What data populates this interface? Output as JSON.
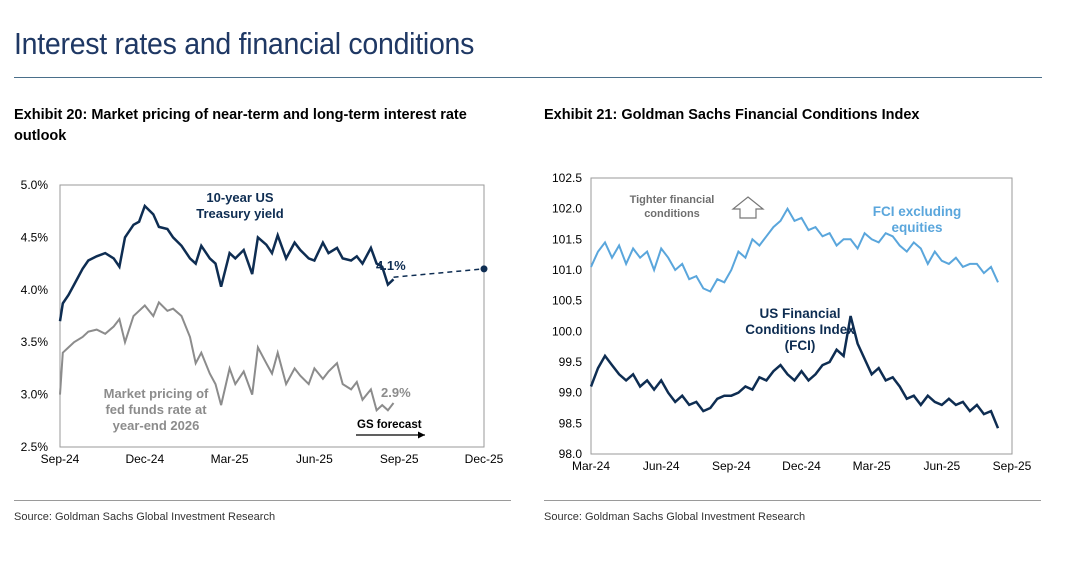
{
  "page": {
    "title": "Interest rates and financial conditions"
  },
  "colors": {
    "navy": "#0e2d52",
    "gray": "#8c8c8c",
    "light_blue": "#5aa6dc",
    "title_blue": "#1f3864"
  },
  "chart_data": [
    {
      "type": "line",
      "title": "Exhibit 20: Market pricing of near-term and long-term interest rate outlook",
      "source": "Source: Goldman Sachs Global Investment Research",
      "x_ticks": [
        "Sep-24",
        "Dec-24",
        "Mar-25",
        "Jun-25",
        "Sep-25",
        "Dec-25"
      ],
      "x_range_months": [
        0,
        15
      ],
      "y_ticks": [
        "5.0%",
        "4.5%",
        "4.0%",
        "3.5%",
        "3.0%",
        "2.5%"
      ],
      "ylim": [
        2.5,
        5.0
      ],
      "series": [
        {
          "name": "10-year US Treasury yield",
          "label_lines": [
            "10-year US",
            "Treasury yield"
          ],
          "end_label": "4.1%",
          "x": [
            0.0,
            0.1,
            0.3,
            0.5,
            0.8,
            1.0,
            1.3,
            1.6,
            1.9,
            2.1,
            2.3,
            2.6,
            2.8,
            3.0,
            3.3,
            3.5,
            3.8,
            4.0,
            4.3,
            4.6,
            4.8,
            5.0,
            5.3,
            5.5,
            5.7,
            6.0,
            6.2,
            6.5,
            6.8,
            7.0,
            7.3,
            7.5,
            7.7,
            8.0,
            8.3,
            8.5,
            8.8,
            9.0,
            9.3,
            9.5,
            9.8,
            10.0,
            10.3,
            10.5,
            10.7,
            11.0,
            11.2,
            11.4,
            11.6,
            11.8
          ],
          "values": [
            3.7,
            3.87,
            3.95,
            4.05,
            4.2,
            4.28,
            4.32,
            4.35,
            4.3,
            4.22,
            4.5,
            4.62,
            4.65,
            4.8,
            4.72,
            4.6,
            4.58,
            4.5,
            4.42,
            4.3,
            4.25,
            4.42,
            4.3,
            4.25,
            4.03,
            4.35,
            4.3,
            4.38,
            4.15,
            4.5,
            4.43,
            4.35,
            4.52,
            4.3,
            4.45,
            4.38,
            4.3,
            4.28,
            4.45,
            4.35,
            4.4,
            4.3,
            4.28,
            4.32,
            4.25,
            4.4,
            4.25,
            4.22,
            4.05,
            4.1
          ],
          "forecast": {
            "from": [
              11.8,
              4.12
            ],
            "to": [
              15.0,
              4.2
            ]
          }
        },
        {
          "name": "Market pricing of fed funds rate at year-end 2026",
          "label_lines": [
            "Market pricing of",
            "fed funds rate at",
            "year-end 2026"
          ],
          "end_label": "2.9%",
          "x": [
            0.0,
            0.1,
            0.3,
            0.5,
            0.8,
            1.0,
            1.3,
            1.6,
            1.9,
            2.1,
            2.3,
            2.6,
            2.8,
            3.0,
            3.3,
            3.5,
            3.8,
            4.0,
            4.3,
            4.6,
            4.8,
            5.0,
            5.3,
            5.5,
            5.7,
            6.0,
            6.2,
            6.5,
            6.8,
            7.0,
            7.3,
            7.5,
            7.7,
            8.0,
            8.3,
            8.5,
            8.8,
            9.0,
            9.3,
            9.5,
            9.8,
            10.0,
            10.3,
            10.5,
            10.7,
            11.0,
            11.2,
            11.4,
            11.6,
            11.8
          ],
          "values": [
            3.0,
            3.4,
            3.45,
            3.5,
            3.55,
            3.6,
            3.62,
            3.58,
            3.65,
            3.72,
            3.5,
            3.75,
            3.8,
            3.85,
            3.75,
            3.88,
            3.8,
            3.82,
            3.75,
            3.55,
            3.3,
            3.4,
            3.2,
            3.1,
            2.9,
            3.25,
            3.1,
            3.22,
            3.0,
            3.45,
            3.3,
            3.2,
            3.4,
            3.1,
            3.25,
            3.18,
            3.1,
            3.25,
            3.15,
            3.22,
            3.3,
            3.1,
            3.05,
            3.12,
            2.95,
            3.05,
            2.85,
            2.9,
            2.85,
            2.92
          ]
        }
      ],
      "annotations": [
        {
          "text": "GS forecast",
          "arrow": "right"
        }
      ]
    },
    {
      "type": "line",
      "title": "Exhibit 21: Goldman Sachs Financial Conditions Index",
      "source": "Source: Goldman Sachs Global Investment Research",
      "x_ticks": [
        "Mar-24",
        "Jun-24",
        "Sep-24",
        "Dec-24",
        "Mar-25",
        "Jun-25",
        "Sep-25"
      ],
      "x_range_months": [
        0,
        18
      ],
      "y_ticks": [
        "102.5",
        "102.0",
        "101.5",
        "101.0",
        "100.5",
        "100.0",
        "99.5",
        "99.0",
        "98.5",
        "98.0"
      ],
      "ylim": [
        98.0,
        102.5
      ],
      "series": [
        {
          "name": "FCI excluding equities",
          "label_lines": [
            "FCI excluding",
            "equities"
          ],
          "x": [
            0.0,
            0.3,
            0.6,
            0.9,
            1.2,
            1.5,
            1.8,
            2.1,
            2.4,
            2.7,
            3.0,
            3.3,
            3.6,
            3.9,
            4.2,
            4.5,
            4.8,
            5.1,
            5.4,
            5.7,
            6.0,
            6.3,
            6.6,
            6.9,
            7.2,
            7.5,
            7.8,
            8.1,
            8.4,
            8.7,
            9.0,
            9.3,
            9.6,
            9.9,
            10.2,
            10.5,
            10.8,
            11.1,
            11.4,
            11.7,
            12.0,
            12.3,
            12.6,
            12.9,
            13.2,
            13.5,
            13.8,
            14.1,
            14.4,
            14.7,
            15.0,
            15.3,
            15.6,
            15.9,
            16.2,
            16.5,
            16.8,
            17.1,
            17.4
          ],
          "values": [
            101.05,
            101.3,
            101.45,
            101.2,
            101.4,
            101.1,
            101.35,
            101.2,
            101.3,
            101.0,
            101.35,
            101.2,
            101.0,
            101.1,
            100.85,
            100.9,
            100.7,
            100.65,
            100.85,
            100.8,
            101.0,
            101.3,
            101.2,
            101.5,
            101.4,
            101.55,
            101.7,
            101.8,
            102.0,
            101.8,
            101.85,
            101.65,
            101.7,
            101.55,
            101.6,
            101.4,
            101.5,
            101.5,
            101.35,
            101.6,
            101.5,
            101.45,
            101.6,
            101.55,
            101.4,
            101.3,
            101.45,
            101.35,
            101.1,
            101.3,
            101.15,
            101.1,
            101.2,
            101.05,
            101.1,
            101.1,
            100.95,
            101.05,
            100.8
          ],
          "label_color": "light_blue"
        },
        {
          "name": "US Financial Conditions Index (FCI)",
          "label_lines": [
            "US Financial",
            "Conditions Index",
            "(FCI)"
          ],
          "x": [
            0.0,
            0.3,
            0.6,
            0.9,
            1.2,
            1.5,
            1.8,
            2.1,
            2.4,
            2.7,
            3.0,
            3.3,
            3.6,
            3.9,
            4.2,
            4.5,
            4.8,
            5.1,
            5.4,
            5.7,
            6.0,
            6.3,
            6.6,
            6.9,
            7.2,
            7.5,
            7.8,
            8.1,
            8.4,
            8.7,
            9.0,
            9.3,
            9.6,
            9.9,
            10.2,
            10.5,
            10.8,
            11.1,
            11.4,
            11.7,
            12.0,
            12.3,
            12.6,
            12.9,
            13.2,
            13.5,
            13.8,
            14.1,
            14.4,
            14.7,
            15.0,
            15.3,
            15.6,
            15.9,
            16.2,
            16.5,
            16.8,
            17.1,
            17.4
          ],
          "values": [
            99.1,
            99.4,
            99.6,
            99.45,
            99.3,
            99.2,
            99.3,
            99.1,
            99.2,
            99.05,
            99.2,
            99.0,
            98.85,
            98.95,
            98.8,
            98.85,
            98.7,
            98.75,
            98.9,
            98.95,
            98.95,
            99.0,
            99.1,
            99.05,
            99.25,
            99.2,
            99.35,
            99.45,
            99.3,
            99.2,
            99.35,
            99.2,
            99.3,
            99.45,
            99.5,
            99.7,
            99.6,
            100.25,
            99.8,
            99.55,
            99.3,
            99.4,
            99.2,
            99.25,
            99.1,
            98.9,
            98.95,
            98.8,
            98.95,
            98.85,
            98.8,
            98.9,
            98.8,
            98.85,
            98.7,
            98.8,
            98.65,
            98.7,
            98.42
          ],
          "label_color": "navy"
        }
      ],
      "annotations": [
        {
          "text_lines": [
            "Tighter financial",
            "conditions"
          ],
          "arrow": "up"
        }
      ]
    }
  ]
}
